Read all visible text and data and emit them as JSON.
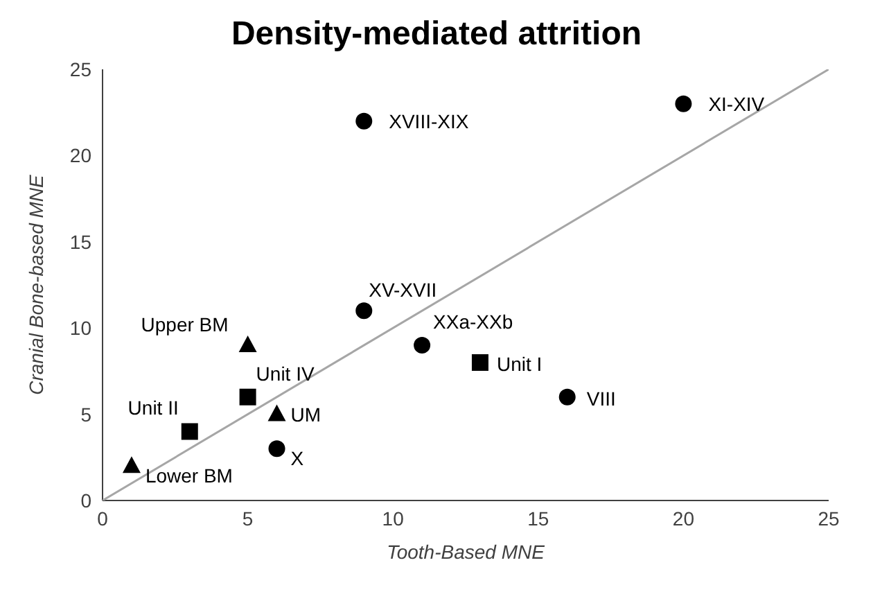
{
  "chart_data": {
    "type": "scatter",
    "title": "Density-mediated attrition",
    "xlabel": "Tooth-Based MNE",
    "ylabel": "Cranial Bone-based MNE",
    "xlim": [
      0,
      25
    ],
    "ylim": [
      0,
      25
    ],
    "xticks": [
      0,
      5,
      10,
      15,
      20,
      25
    ],
    "yticks": [
      0,
      5,
      10,
      15,
      20,
      25
    ],
    "grid": false,
    "series": [
      {
        "marker": "circle",
        "color": "#000000",
        "x": [
          9,
          20,
          9,
          11,
          16,
          6
        ],
        "values": [
          22,
          23,
          11,
          9,
          6,
          3
        ]
      },
      {
        "marker": "square",
        "color": "#000000",
        "x": [
          13,
          5,
          3
        ],
        "values": [
          8,
          6,
          4
        ]
      },
      {
        "marker": "triangle",
        "color": "#000000",
        "x": [
          5,
          6,
          1
        ],
        "values": [
          9,
          5,
          2
        ]
      },
      {
        "type": "line",
        "marker": "none",
        "color": "#a6a6a6",
        "x": [
          0,
          25
        ],
        "values": [
          0,
          25
        ]
      }
    ],
    "annotations": [
      {
        "text": "XVIII-XIX",
        "x": 9,
        "y": 22
      },
      {
        "text": "XI-XIV",
        "x": 20,
        "y": 23
      },
      {
        "text": "XV-XVII",
        "x": 9,
        "y": 11
      },
      {
        "text": "XXa-XXb",
        "x": 11,
        "y": 9
      },
      {
        "text": "VIII",
        "x": 16,
        "y": 6
      },
      {
        "text": "X",
        "x": 6,
        "y": 3
      },
      {
        "text": "Unit I",
        "x": 13,
        "y": 8
      },
      {
        "text": "Unit IV",
        "x": 5,
        "y": 6
      },
      {
        "text": "Unit II",
        "x": 3,
        "y": 4
      },
      {
        "text": "Upper BM",
        "x": 5,
        "y": 9
      },
      {
        "text": "UM",
        "x": 6,
        "y": 5
      },
      {
        "text": "Lower BM",
        "x": 1,
        "y": 2
      }
    ]
  }
}
